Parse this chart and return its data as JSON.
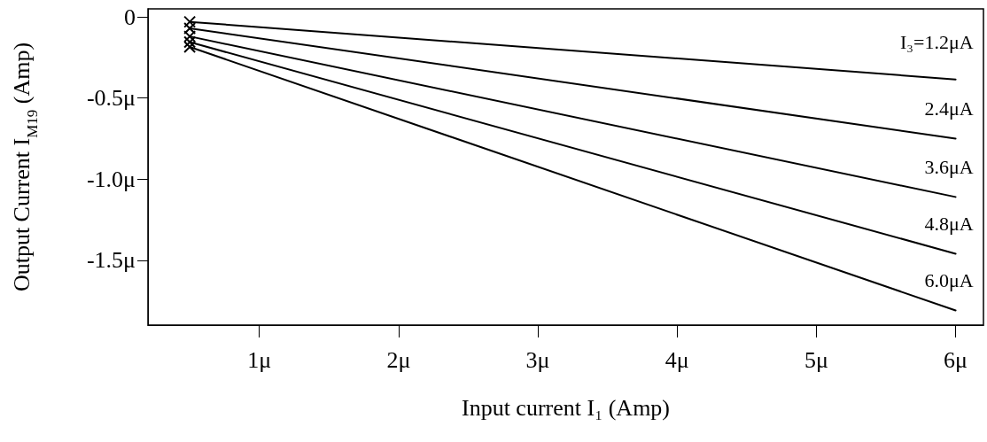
{
  "chart_data": {
    "type": "line",
    "xlabel": "Input current I₁ (Amp)",
    "ylabel": "Output Current I$_{M19}$ (Amp)",
    "xlim": [
      0.2,
      6.2
    ],
    "ylim": [
      -1.9,
      0.05
    ],
    "xticks": [
      {
        "value": 1,
        "label": "1μ"
      },
      {
        "value": 2,
        "label": "2μ"
      },
      {
        "value": 3,
        "label": "3μ"
      },
      {
        "value": 4,
        "label": "4μ"
      },
      {
        "value": 5,
        "label": "5μ"
      },
      {
        "value": 6,
        "label": "6μ"
      }
    ],
    "yticks": [
      {
        "value": 0,
        "label": "0"
      },
      {
        "value": -0.5,
        "label": "-0.5μ"
      },
      {
        "value": -1.0,
        "label": "-1.0μ"
      },
      {
        "value": -1.5,
        "label": "-1.5μ"
      }
    ],
    "x": [
      0.5,
      6
    ],
    "series": [
      {
        "name": "I₃=1.2μA",
        "color": "#000000",
        "values": [
          -0.03,
          -0.385
        ]
      },
      {
        "name": "2.4μA",
        "color": "#000000",
        "values": [
          -0.07,
          -0.75
        ]
      },
      {
        "name": "3.6μA",
        "color": "#000000",
        "values": [
          -0.12,
          -1.11
        ]
      },
      {
        "name": "4.8μA",
        "color": "#000000",
        "values": [
          -0.155,
          -1.46
        ]
      },
      {
        "name": "6.0μA",
        "color": "#000000",
        "values": [
          -0.185,
          -1.81
        ]
      }
    ],
    "marker": "cross",
    "line_style": "solid",
    "grid": false,
    "legend": false
  }
}
